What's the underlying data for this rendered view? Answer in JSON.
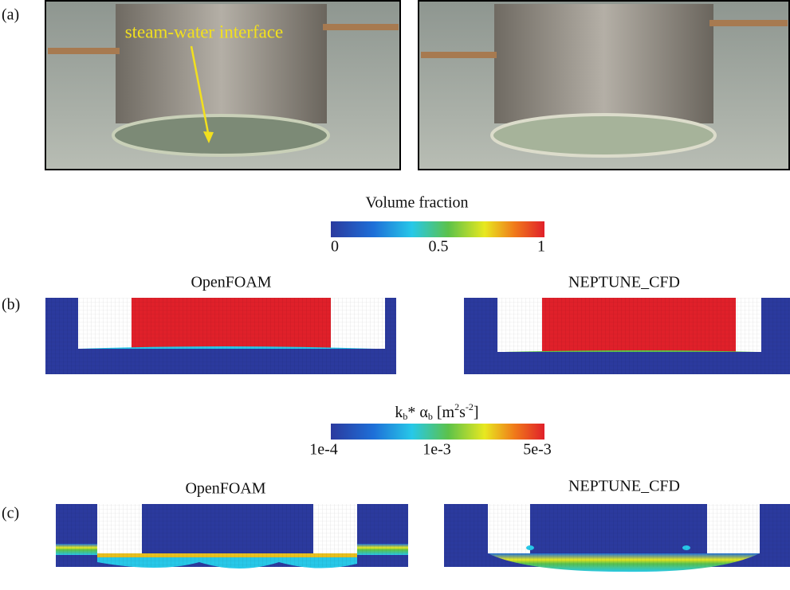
{
  "panel_a": {
    "label": "(a)",
    "annotation": "steam-water interface"
  },
  "colorbar_1": {
    "title": "Volume fraction",
    "ticks": [
      "0",
      "0.5",
      "1"
    ]
  },
  "panel_b": {
    "label": "(b)",
    "left_title": "OpenFOAM",
    "right_title": "NEPTUNE_CFD"
  },
  "colorbar_2": {
    "title": [
      {
        "text": "k"
      },
      {
        "text": "b",
        "style": "sub"
      },
      {
        "text": "* α"
      },
      {
        "text": "b",
        "style": "sub"
      },
      {
        "text": " [m"
      },
      {
        "text": "2",
        "style": "sup"
      },
      {
        "text": "s"
      },
      {
        "text": "-2",
        "style": "sup"
      },
      {
        "text": "]"
      }
    ],
    "ticks": [
      "1e-4",
      "1e-3",
      "5e-3"
    ]
  },
  "panel_c": {
    "label": "(c)",
    "left_title": "OpenFOAM",
    "right_title": "NEPTUNE_CFD"
  }
}
